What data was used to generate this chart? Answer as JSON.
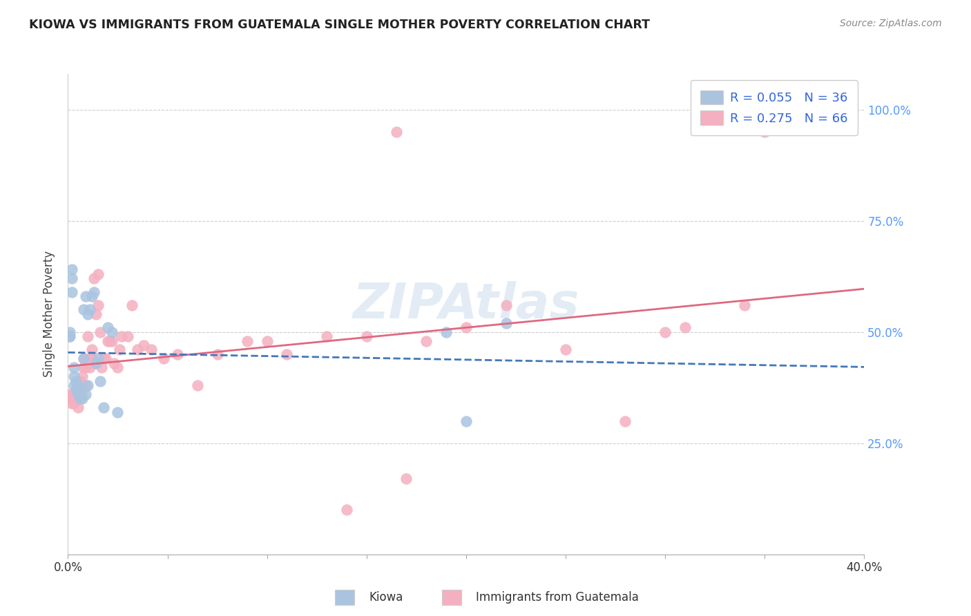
{
  "title": "KIOWA VS IMMIGRANTS FROM GUATEMALA SINGLE MOTHER POVERTY CORRELATION CHART",
  "source": "Source: ZipAtlas.com",
  "ylabel": "Single Mother Poverty",
  "x_min": 0.0,
  "x_max": 0.4,
  "y_min": 0.0,
  "y_max": 1.08,
  "kiowa_R": "0.055",
  "kiowa_N": "36",
  "guatemala_R": "0.275",
  "guatemala_N": "66",
  "kiowa_color": "#aac4e0",
  "guatemala_color": "#f4b0c0",
  "kiowa_line_color": "#4477bb",
  "guatemala_line_color": "#e06880",
  "watermark": "ZIPAtlas",
  "background_color": "#ffffff",
  "kiowa_scatter_x": [
    0.0005,
    0.001,
    0.001,
    0.002,
    0.002,
    0.002,
    0.003,
    0.003,
    0.003,
    0.004,
    0.004,
    0.005,
    0.005,
    0.006,
    0.006,
    0.007,
    0.007,
    0.008,
    0.008,
    0.009,
    0.009,
    0.01,
    0.01,
    0.011,
    0.012,
    0.013,
    0.014,
    0.015,
    0.016,
    0.018,
    0.02,
    0.022,
    0.025,
    0.19,
    0.2,
    0.22
  ],
  "kiowa_scatter_y": [
    0.49,
    0.49,
    0.5,
    0.59,
    0.62,
    0.64,
    0.38,
    0.4,
    0.42,
    0.37,
    0.39,
    0.36,
    0.38,
    0.35,
    0.36,
    0.35,
    0.37,
    0.44,
    0.55,
    0.58,
    0.36,
    0.38,
    0.54,
    0.55,
    0.58,
    0.59,
    0.43,
    0.44,
    0.39,
    0.33,
    0.51,
    0.5,
    0.32,
    0.5,
    0.3,
    0.52
  ],
  "guatemala_scatter_x": [
    0.0005,
    0.001,
    0.002,
    0.002,
    0.003,
    0.003,
    0.004,
    0.004,
    0.005,
    0.005,
    0.006,
    0.006,
    0.007,
    0.007,
    0.008,
    0.008,
    0.009,
    0.009,
    0.01,
    0.01,
    0.011,
    0.011,
    0.012,
    0.012,
    0.013,
    0.013,
    0.014,
    0.015,
    0.015,
    0.016,
    0.017,
    0.018,
    0.019,
    0.02,
    0.021,
    0.022,
    0.023,
    0.025,
    0.026,
    0.027,
    0.03,
    0.032,
    0.035,
    0.038,
    0.042,
    0.048,
    0.055,
    0.065,
    0.075,
    0.09,
    0.1,
    0.11,
    0.13,
    0.15,
    0.18,
    0.2,
    0.22,
    0.25,
    0.28,
    0.31,
    0.34,
    0.3,
    0.17,
    0.14,
    0.165,
    0.35
  ],
  "guatemala_scatter_y": [
    0.35,
    0.36,
    0.34,
    0.36,
    0.34,
    0.36,
    0.35,
    0.36,
    0.33,
    0.36,
    0.37,
    0.39,
    0.37,
    0.4,
    0.42,
    0.44,
    0.38,
    0.42,
    0.43,
    0.49,
    0.42,
    0.44,
    0.44,
    0.46,
    0.43,
    0.62,
    0.54,
    0.56,
    0.63,
    0.5,
    0.42,
    0.44,
    0.44,
    0.48,
    0.48,
    0.48,
    0.43,
    0.42,
    0.46,
    0.49,
    0.49,
    0.56,
    0.46,
    0.47,
    0.46,
    0.44,
    0.45,
    0.38,
    0.45,
    0.48,
    0.48,
    0.45,
    0.49,
    0.49,
    0.48,
    0.51,
    0.56,
    0.46,
    0.3,
    0.51,
    0.56,
    0.5,
    0.17,
    0.1,
    0.95,
    0.95
  ]
}
